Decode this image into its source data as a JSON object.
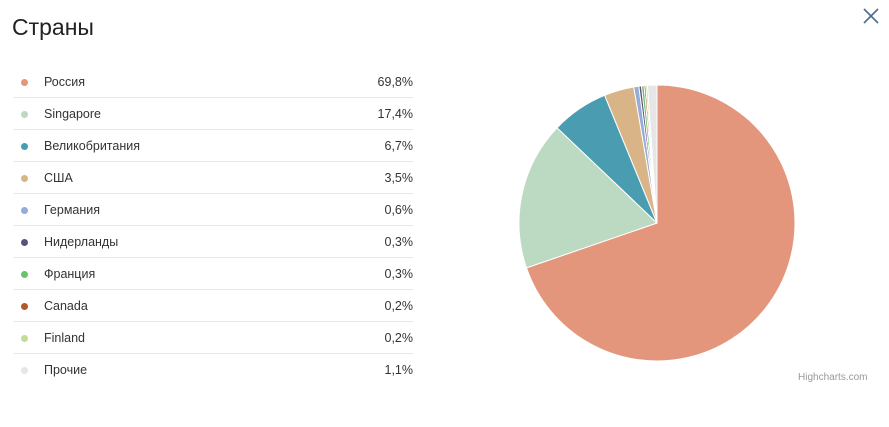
{
  "header": {
    "title": "Страны"
  },
  "close_icon": "close-icon",
  "credits": "Highcharts.com",
  "chart_data": {
    "type": "pie",
    "title": "",
    "categories": [
      "Россия",
      "Singapore",
      "Великобритания",
      "США",
      "Германия",
      "Нидерланды",
      "Франция",
      "Canada",
      "Finland",
      "Прочие"
    ],
    "values": [
      69.8,
      17.4,
      6.7,
      3.5,
      0.6,
      0.3,
      0.3,
      0.2,
      0.2,
      1.1
    ],
    "labels": [
      "69,8%",
      "17,4%",
      "6,7%",
      "3,5%",
      "0,6%",
      "0,3%",
      "0,3%",
      "0,2%",
      "0,2%",
      "1,1%"
    ],
    "colors": [
      "#e3967c",
      "#bcd9c1",
      "#4a9db0",
      "#d9b487",
      "#95acd6",
      "#5a527a",
      "#6cbf6c",
      "#b05a2e",
      "#c1dd95",
      "#e6e6e6"
    ],
    "legend_position": "left"
  }
}
